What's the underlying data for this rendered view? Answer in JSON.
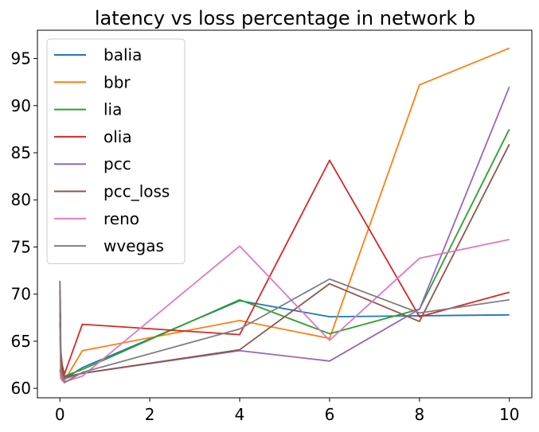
{
  "chart_data": {
    "type": "line",
    "title": "latency vs loss percentage in network b",
    "xlabel": "",
    "ylabel": "",
    "xlim": [
      -0.5,
      10.5
    ],
    "ylim": [
      59,
      98
    ],
    "xticks": [
      0,
      2,
      4,
      6,
      8,
      10
    ],
    "yticks": [
      60,
      65,
      70,
      75,
      80,
      85,
      90,
      95
    ],
    "grid": false,
    "legend_position": "top-left",
    "x": [
      0.0,
      0.01,
      0.02,
      0.05,
      0.1,
      0.5,
      4,
      6,
      8,
      10
    ],
    "series": [
      {
        "name": "balia",
        "color": "#1f77b4",
        "values": [
          66.5,
          68.0,
          63.0,
          61.5,
          61.0,
          62.2,
          69.3,
          67.6,
          67.7,
          67.8
        ]
      },
      {
        "name": "bbr",
        "color": "#ff7f0e",
        "values": [
          62.0,
          61.5,
          61.0,
          62.0,
          60.8,
          64.0,
          67.2,
          65.3,
          92.2,
          96.1
        ]
      },
      {
        "name": "lia",
        "color": "#2ca02c",
        "values": [
          68.0,
          66.0,
          62.5,
          61.8,
          61.3,
          62.0,
          69.4,
          65.8,
          68.4,
          87.5
        ]
      },
      {
        "name": "olia",
        "color": "#d62728",
        "values": [
          70.5,
          65.0,
          64.0,
          62.5,
          61.5,
          66.8,
          65.7,
          84.2,
          67.6,
          70.2
        ]
      },
      {
        "name": "pcc",
        "color": "#9467bd",
        "values": [
          69.0,
          67.0,
          62.0,
          61.5,
          61.0,
          61.6,
          64.0,
          62.9,
          68.4,
          92.0
        ]
      },
      {
        "name": "pcc_loss",
        "color": "#8c564b",
        "values": [
          71.4,
          69.2,
          63.5,
          62.0,
          61.2,
          61.6,
          64.1,
          71.1,
          67.1,
          85.9
        ]
      },
      {
        "name": "reno",
        "color": "#e377c2",
        "values": [
          65.5,
          64.0,
          61.5,
          60.8,
          60.7,
          61.3,
          75.1,
          65.1,
          73.8,
          75.8
        ]
      },
      {
        "name": "wvegas",
        "color": "#7f7f7f",
        "values": [
          71.3,
          66.0,
          62.0,
          61.2,
          60.6,
          61.7,
          66.3,
          71.6,
          68.0,
          69.4
        ]
      }
    ]
  }
}
